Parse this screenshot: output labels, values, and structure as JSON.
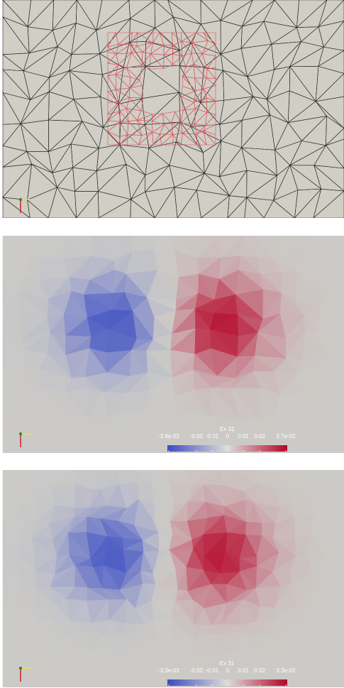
{
  "panel_2": {
    "colorbar": {
      "title": "Ex 31",
      "labels": [
        "-3.8e-02",
        "-0.02",
        "-0.01",
        "0",
        "0.01",
        "0.02",
        "3.7e-02"
      ]
    }
  },
  "panel_3": {
    "colorbar": {
      "title": "Ex 31",
      "labels": [
        "-3.3e-02",
        "-0.02",
        "-0.01",
        "0",
        "0.01",
        "0.02",
        "3.3e-02"
      ]
    }
  }
}
